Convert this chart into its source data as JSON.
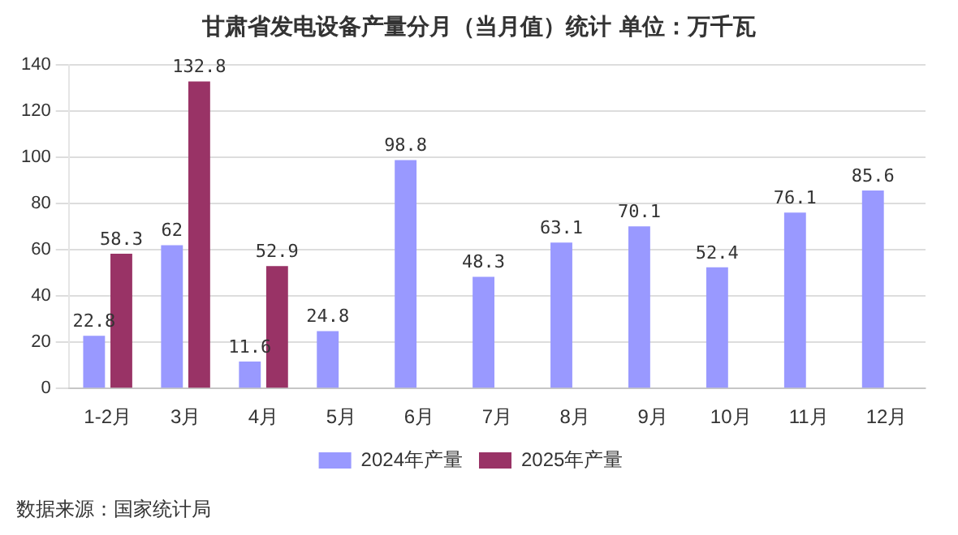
{
  "chart_data": {
    "type": "bar",
    "title": "甘肃省发电设备产量分月（当月值）统计 单位：万千瓦",
    "categories": [
      "1-2月",
      "3月",
      "4月",
      "5月",
      "6月",
      "7月",
      "8月",
      "9月",
      "10月",
      "11月",
      "12月"
    ],
    "series": [
      {
        "name": "2024年产量",
        "color": "#9999ff",
        "values": [
          22.8,
          62,
          11.6,
          24.8,
          98.8,
          48.3,
          63.1,
          70.1,
          52.4,
          76.1,
          85.6
        ]
      },
      {
        "name": "2025年产量",
        "color": "#993366",
        "values": [
          58.3,
          132.8,
          52.9,
          null,
          null,
          null,
          null,
          null,
          null,
          null,
          null
        ]
      }
    ],
    "ylim": [
      0,
      140
    ],
    "yticks": [
      0,
      20,
      40,
      60,
      80,
      100,
      120,
      140
    ],
    "grid": "y",
    "legend": "bottom",
    "data_labels": true,
    "annotations": [
      "数据来源：国家统计局"
    ]
  }
}
